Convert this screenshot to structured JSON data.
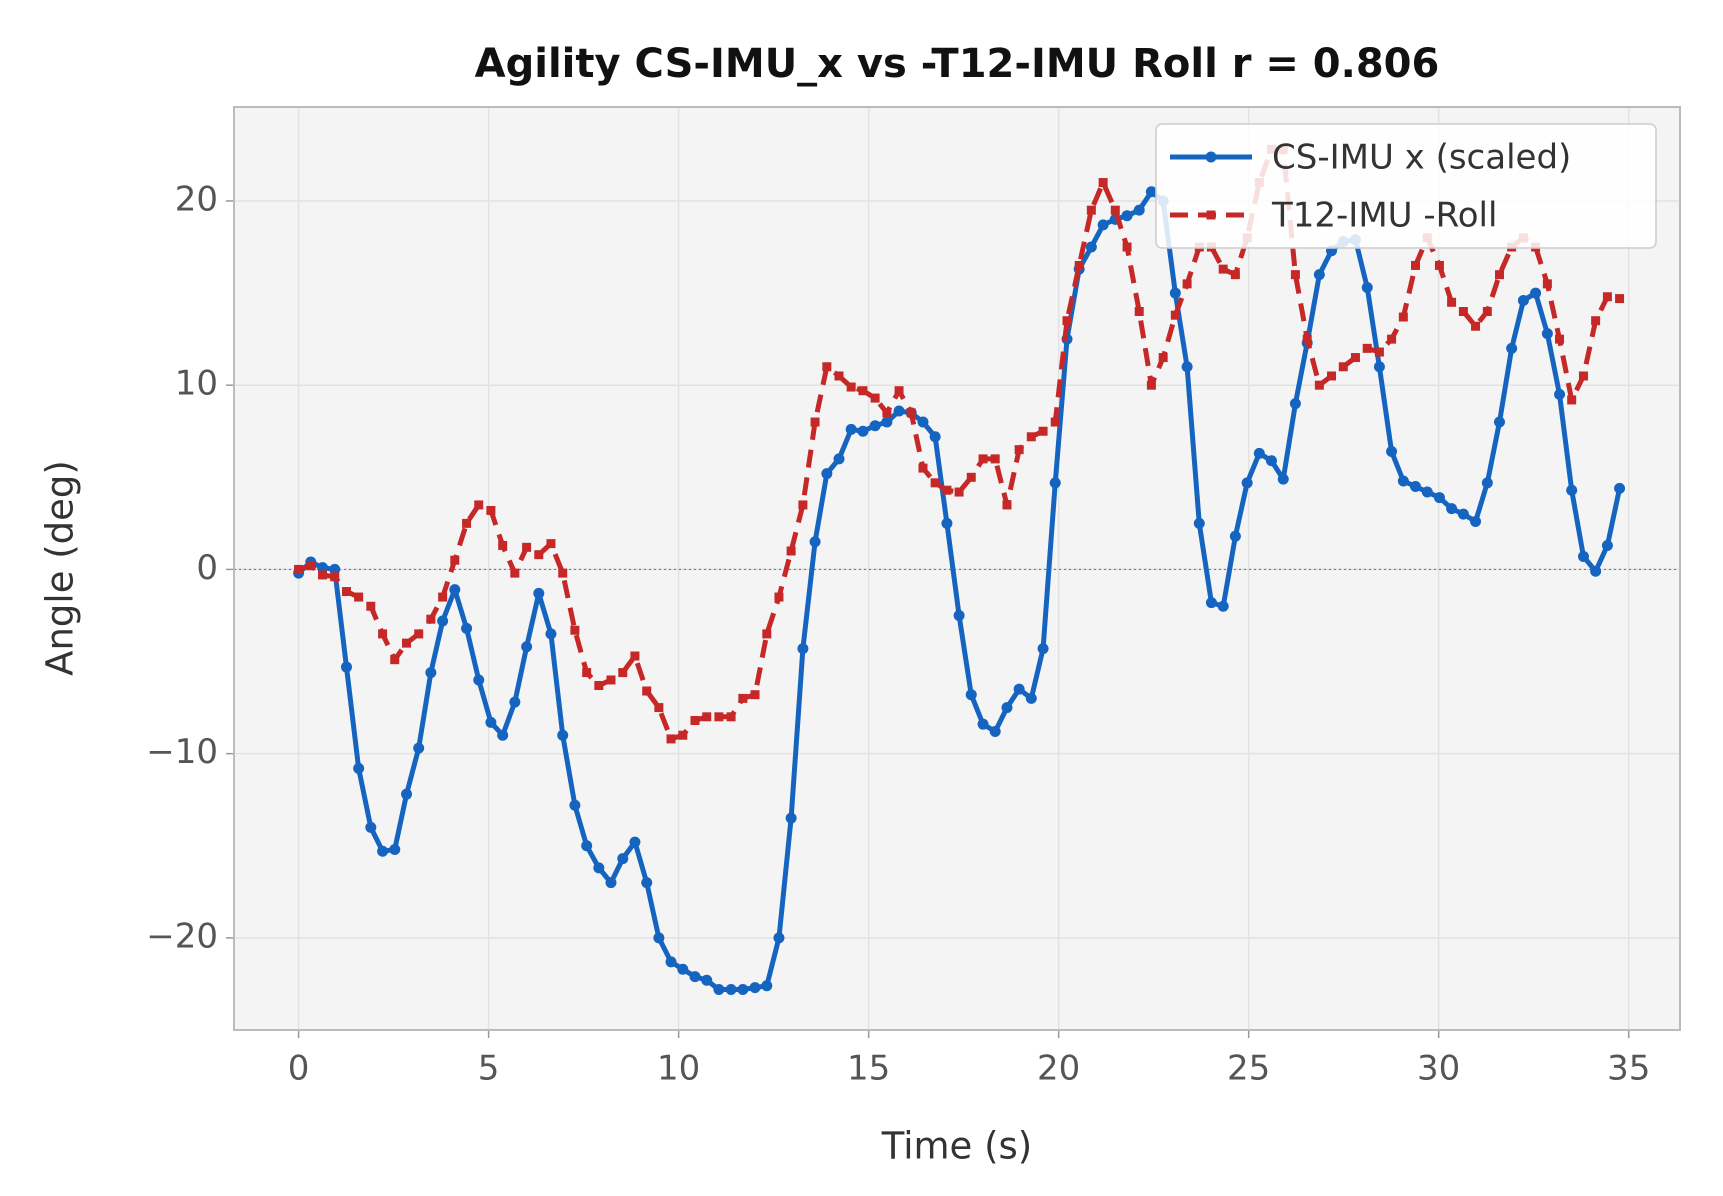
{
  "chart_data": {
    "type": "line",
    "title": "Agility  CS-IMU_x vs -T12-IMU Roll   r = 0.806",
    "xlabel": "Time (s)",
    "ylabel": "Angle (deg)",
    "x": [
      0,
      0.32,
      0.63,
      0.95,
      1.26,
      1.58,
      1.9,
      2.21,
      2.53,
      2.84,
      3.16,
      3.48,
      3.79,
      4.11,
      4.42,
      4.74,
      5.06,
      5.37,
      5.69,
      6.0,
      6.32,
      6.64,
      6.95,
      7.27,
      7.58,
      7.9,
      8.22,
      8.53,
      8.85,
      9.16,
      9.48,
      9.8,
      10.11,
      10.43,
      10.74,
      11.06,
      11.38,
      11.69,
      12.01,
      12.32,
      12.64,
      12.96,
      13.27,
      13.59,
      13.9,
      14.22,
      14.54,
      14.85,
      15.17,
      15.48,
      15.8,
      16.12,
      16.43,
      16.75,
      17.06,
      17.38,
      17.7,
      18.01,
      18.33,
      18.64,
      18.96,
      19.28,
      19.59,
      19.91,
      20.22,
      20.54,
      20.86,
      21.17,
      21.49,
      21.8,
      22.12,
      22.44,
      22.75,
      23.07,
      23.38,
      23.7,
      24.02,
      24.33,
      24.65,
      24.96,
      25.28,
      25.6,
      25.91,
      26.23,
      26.54,
      26.86,
      27.18,
      27.49,
      27.81,
      28.12,
      28.44,
      28.76,
      29.07,
      29.39,
      29.7,
      30.02,
      30.34,
      30.65,
      30.97,
      31.28,
      31.6,
      31.92,
      32.23,
      32.55,
      32.86,
      33.18,
      33.5,
      33.81,
      34.13,
      34.44,
      34.76
    ],
    "series": [
      {
        "name": "CS-IMU x (scaled)",
        "color": "#1565c0",
        "dash": false,
        "marker": "circle",
        "values": [
          -0.2,
          0.4,
          0.1,
          0,
          -5.3,
          -10.8,
          -14,
          -15.3,
          -15.2,
          -12.2,
          -9.7,
          -5.6,
          -2.8,
          -1.1,
          -3.2,
          -6,
          -8.3,
          -9,
          -7.2,
          -4.2,
          -1.3,
          -3.5,
          -9,
          -12.8,
          -15,
          -16.2,
          -17,
          -15.7,
          -14.8,
          -17,
          -20,
          -21.3,
          -21.7,
          -22.1,
          -22.3,
          -22.8,
          -22.8,
          -22.8,
          -22.7,
          -22.6,
          -20,
          -13.5,
          -4.3,
          1.5,
          5.2,
          6,
          7.6,
          7.5,
          7.8,
          8,
          8.6,
          8.5,
          8,
          7.2,
          2.5,
          -2.5,
          -6.8,
          -8.4,
          -8.8,
          -7.5,
          -6.5,
          -7,
          -4.3,
          4.7,
          12.5,
          16.3,
          17.5,
          18.7,
          19,
          19.2,
          19.5,
          20.5,
          20,
          15,
          11,
          2.5,
          -1.8,
          -2,
          1.8,
          4.7,
          6.3,
          5.9,
          4.9,
          9,
          12.3,
          16,
          17.3,
          17.8,
          17.9,
          15.3,
          11,
          6.4,
          4.8,
          4.5,
          4.2,
          3.9,
          3.3,
          3,
          2.6,
          4.7,
          8,
          12,
          14.6,
          15,
          12.8,
          9.5,
          4.3,
          0.7,
          -0.1,
          1.3,
          4.4
        ]
      },
      {
        "name": "T12-IMU -Roll",
        "color": "#c62828",
        "dash": true,
        "marker": "square",
        "values": [
          0,
          0.2,
          -0.3,
          -0.4,
          -1.2,
          -1.5,
          -2,
          -3.5,
          -4.9,
          -4,
          -3.5,
          -2.7,
          -1.5,
          0.5,
          2.5,
          3.5,
          3.2,
          1.3,
          -0.2,
          1.2,
          0.8,
          1.4,
          -0.2,
          -3.3,
          -5.6,
          -6.3,
          -6,
          -5.6,
          -4.7,
          -6.6,
          -7.5,
          -9.2,
          -9,
          -8.2,
          -8,
          -8,
          -8,
          -7,
          -6.8,
          -3.5,
          -1.5,
          1,
          3.5,
          8,
          11,
          10.5,
          9.9,
          9.7,
          9.3,
          8.5,
          9.7,
          8.5,
          5.5,
          4.7,
          4.3,
          4.2,
          5,
          6,
          6,
          3.5,
          6.5,
          7.2,
          7.5,
          8,
          13.5,
          16.5,
          19.5,
          21,
          19.5,
          17.5,
          14,
          10,
          11.5,
          13.8,
          15.5,
          17.5,
          17.5,
          16.3,
          16,
          18,
          21,
          22.8,
          22.8,
          16,
          12.5,
          10,
          10.5,
          11,
          11.5,
          12,
          11.8,
          12.5,
          13.7,
          16.5,
          18,
          16.5,
          14.5,
          14,
          13.2,
          14,
          16,
          17.5,
          18,
          17.5,
          15.5,
          12.5,
          9.2,
          10.5,
          13.5,
          14.8,
          14.7
        ]
      }
    ],
    "xlim": [
      -1.7,
      36.35
    ],
    "ylim": [
      -25,
      25.1
    ],
    "xticks": [
      0,
      5,
      10,
      15,
      20,
      25,
      30,
      35
    ],
    "yticks": [
      {
        "value": -20,
        "label": "−20"
      },
      {
        "value": -10,
        "label": "−10"
      },
      0,
      10,
      20
    ],
    "hline": 0,
    "grid": true,
    "legend": "upper right"
  }
}
